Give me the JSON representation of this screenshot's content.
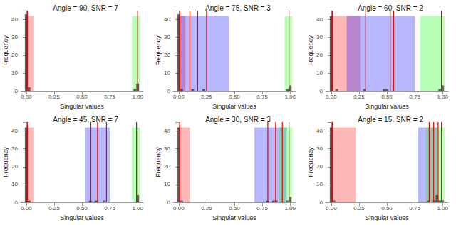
{
  "chart_data": {
    "type": "histogram",
    "xlabel": "Singular values",
    "ylabel": "Frequency",
    "xlim": [
      -0.05,
      1.05
    ],
    "xticks": [
      {
        "value": 0,
        "label": "0.00"
      },
      {
        "value": 0.25,
        "label": "0.25"
      },
      {
        "value": 0.5,
        "label": "0.50"
      },
      {
        "value": 0.75,
        "label": "0.75"
      },
      {
        "value": 1,
        "label": "1.00"
      }
    ],
    "ylim": [
      0,
      45
    ],
    "yticks": [
      0,
      10,
      20,
      30,
      40
    ],
    "grid": false,
    "color": "#333333",
    "region_top": 42,
    "line_color": "#ee0000",
    "bins": [
      -0.0125,
      0.0125,
      0.0375,
      0.0625,
      0.0875,
      0.1125,
      0.1375,
      0.1625,
      0.1875,
      0.2125,
      0.2375,
      0.2625,
      0.2875,
      0.3125,
      0.3375,
      0.3625,
      0.3875,
      0.4125,
      0.4375,
      0.4625,
      0.4875,
      0.5125,
      0.5375,
      0.5625,
      0.5875,
      0.6125,
      0.6375,
      0.6625,
      0.6875,
      0.7125,
      0.7375,
      0.7625,
      0.7875,
      0.8125,
      0.8375,
      0.8625,
      0.8875,
      0.9125,
      0.9375,
      0.9625,
      0.9875,
      1.0125
    ],
    "panels": [
      {
        "title": "Angle = 90, SNR = 7",
        "counts": [
          43,
          2,
          0,
          0,
          0,
          0,
          0,
          0,
          0,
          0,
          0,
          0,
          0,
          0,
          0,
          0,
          0,
          0,
          0,
          0,
          0,
          0,
          0,
          0,
          0,
          0,
          0,
          0,
          0,
          0,
          0,
          0,
          0,
          0,
          0,
          0,
          0,
          0,
          0,
          1,
          4
        ],
        "regions": [
          {
            "from": -0.01,
            "to": 0.07,
            "color": "#ff0000"
          },
          {
            "from": 0.95,
            "to": 1.02,
            "color": "#00ff00"
          }
        ],
        "lines": [
          0.01,
          1.0
        ]
      },
      {
        "title": "Angle = 75, SNR = 3",
        "counts": [
          43,
          1,
          0,
          0,
          0,
          1,
          0,
          0,
          0,
          1,
          0,
          0,
          0,
          0,
          0,
          0,
          0,
          0,
          0,
          0,
          0,
          0,
          0,
          0,
          0,
          0,
          0,
          0,
          0,
          0,
          0,
          0,
          0,
          0,
          0,
          0,
          0,
          0,
          0,
          1,
          3
        ],
        "regions": [
          {
            "from": -0.01,
            "to": 0.06,
            "color": "#ff0000"
          },
          {
            "from": 0.0,
            "to": 0.45,
            "color": "#0000ff"
          },
          {
            "from": 0.95,
            "to": 1.02,
            "color": "#00ff00"
          }
        ],
        "lines": [
          0.01,
          0.1,
          0.17,
          0.25,
          0.99
        ]
      },
      {
        "title": "Angle = 60, SNR = 2",
        "counts": [
          42,
          0,
          1,
          0,
          0,
          0,
          0,
          0,
          0,
          0,
          0,
          0,
          1,
          0,
          0,
          0,
          0,
          0,
          0,
          1,
          1,
          0,
          0,
          0,
          0,
          0,
          0,
          0,
          0,
          0,
          0,
          0,
          0,
          0,
          0,
          0,
          0,
          0,
          0,
          1,
          3
        ],
        "regions": [
          {
            "from": -0.01,
            "to": 0.26,
            "color": "#ff0000"
          },
          {
            "from": 0.14,
            "to": 0.75,
            "color": "#0000ff"
          },
          {
            "from": 0.8,
            "to": 1.02,
            "color": "#00ff00"
          }
        ],
        "lines": [
          0.01,
          0.31,
          0.53,
          0.56,
          0.99
        ]
      },
      {
        "title": "Angle = 45, SNR = 7",
        "counts": [
          42,
          1,
          0,
          0,
          0,
          0,
          0,
          0,
          0,
          0,
          0,
          0,
          0,
          0,
          0,
          0,
          0,
          0,
          0,
          0,
          0,
          0,
          0,
          1,
          0,
          1,
          0,
          0,
          1,
          0,
          0,
          0,
          0,
          0,
          0,
          0,
          0,
          0,
          0,
          0,
          4
        ],
        "regions": [
          {
            "from": -0.01,
            "to": 0.07,
            "color": "#ff0000"
          },
          {
            "from": 0.53,
            "to": 0.75,
            "color": "#0000ff"
          },
          {
            "from": 0.95,
            "to": 1.02,
            "color": "#00ff00"
          }
        ],
        "lines": [
          0.01,
          0.58,
          0.64,
          0.72,
          0.99
        ]
      },
      {
        "title": "Angle = 30, SNR = 3",
        "counts": [
          42,
          1,
          0,
          0,
          0,
          0,
          0,
          0,
          0,
          0,
          0,
          0,
          0,
          0,
          0,
          0,
          0,
          0,
          0,
          0,
          0,
          0,
          0,
          0,
          0,
          0,
          0,
          0,
          0,
          0,
          0,
          0,
          1,
          0,
          1,
          1,
          0,
          0,
          0,
          1,
          3
        ],
        "regions": [
          {
            "from": -0.01,
            "to": 0.1,
            "color": "#ff0000"
          },
          {
            "from": 0.68,
            "to": 0.97,
            "color": "#0000ff"
          },
          {
            "from": 0.9,
            "to": 1.02,
            "color": "#00ff00"
          }
        ],
        "lines": [
          0.01,
          0.8,
          0.87,
          0.93,
          0.99
        ]
      },
      {
        "title": "Angle = 15, SNR = 2",
        "counts": [
          42,
          1,
          0,
          0,
          0,
          0,
          0,
          0,
          0,
          0,
          0,
          0,
          0,
          0,
          0,
          0,
          0,
          0,
          0,
          0,
          0,
          0,
          0,
          0,
          0,
          0,
          0,
          0,
          0,
          0,
          0,
          0,
          0,
          0,
          0,
          1,
          0,
          1,
          4,
          1,
          1
        ],
        "regions": [
          {
            "from": -0.01,
            "to": 0.22,
            "color": "#ff0000"
          },
          {
            "from": 0.78,
            "to": 0.95,
            "color": "#0000ff"
          },
          {
            "from": 0.85,
            "to": 1.02,
            "color": "#00ff00"
          }
        ],
        "lines": [
          0.01,
          0.88,
          0.92,
          0.96,
          0.99
        ]
      }
    ]
  }
}
